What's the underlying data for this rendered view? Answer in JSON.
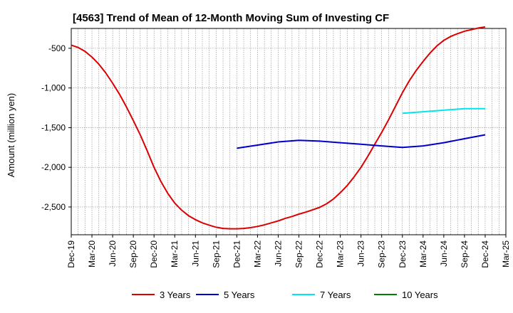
{
  "chart_data": {
    "type": "line",
    "title": "[4563]  Trend of Mean of 12-Month Moving Sum of Investing CF",
    "ylabel": "Amount (million yen)",
    "xlabel": "",
    "ylim": [
      -2850,
      -250
    ],
    "yticks": [
      -500,
      -1000,
      -1500,
      -2000,
      -2500
    ],
    "ytick_labels": [
      "-500",
      "-1,000",
      "-1,500",
      "-2,000",
      "-2,500"
    ],
    "x_range": [
      "2019-12",
      "2025-03"
    ],
    "xtick_labels": [
      "Dec-19",
      "Mar-20",
      "Jun-20",
      "Sep-20",
      "Dec-20",
      "Mar-21",
      "Jun-21",
      "Sep-21",
      "Dec-21",
      "Mar-22",
      "Jun-22",
      "Sep-22",
      "Dec-22",
      "Mar-23",
      "Jun-23",
      "Sep-23",
      "Dec-23",
      "Mar-24",
      "Jun-24",
      "Sep-24",
      "Dec-24",
      "Mar-25"
    ],
    "grid": true,
    "legend_position": "bottom",
    "series": [
      {
        "name": "3 Years",
        "color": "#dd0000",
        "x": [
          "2019-12",
          "2020-01",
          "2020-02",
          "2020-03",
          "2020-04",
          "2020-05",
          "2020-06",
          "2020-07",
          "2020-08",
          "2020-09",
          "2020-10",
          "2020-11",
          "2020-12",
          "2021-01",
          "2021-02",
          "2021-03",
          "2021-04",
          "2021-05",
          "2021-06",
          "2021-07",
          "2021-08",
          "2021-09",
          "2021-10",
          "2021-11",
          "2021-12",
          "2022-01",
          "2022-02",
          "2022-03",
          "2022-04",
          "2022-05",
          "2022-06",
          "2022-07",
          "2022-08",
          "2022-09",
          "2022-10",
          "2022-11",
          "2022-12",
          "2023-01",
          "2023-02",
          "2023-03",
          "2023-04",
          "2023-05",
          "2023-06",
          "2023-07",
          "2023-08",
          "2023-09",
          "2023-10",
          "2023-11",
          "2023-12",
          "2024-01",
          "2024-02",
          "2024-03",
          "2024-04",
          "2024-05",
          "2024-06",
          "2024-07",
          "2024-08",
          "2024-09",
          "2024-10",
          "2024-11",
          "2024-12"
        ],
        "values": [
          -460,
          -490,
          -540,
          -610,
          -700,
          -810,
          -940,
          -1080,
          -1240,
          -1410,
          -1590,
          -1790,
          -2000,
          -2180,
          -2330,
          -2450,
          -2540,
          -2610,
          -2660,
          -2700,
          -2730,
          -2755,
          -2770,
          -2775,
          -2775,
          -2770,
          -2760,
          -2745,
          -2725,
          -2700,
          -2675,
          -2645,
          -2620,
          -2590,
          -2565,
          -2535,
          -2505,
          -2460,
          -2400,
          -2320,
          -2230,
          -2120,
          -2000,
          -1860,
          -1710,
          -1560,
          -1400,
          -1230,
          -1060,
          -910,
          -780,
          -665,
          -560,
          -470,
          -400,
          -350,
          -315,
          -285,
          -265,
          -245,
          -230
        ]
      },
      {
        "name": "5 Years",
        "color": "#0000cc",
        "x": [
          "2021-12",
          "2022-03",
          "2022-06",
          "2022-09",
          "2022-12",
          "2023-03",
          "2023-06",
          "2023-09",
          "2023-12",
          "2024-03",
          "2024-06",
          "2024-09",
          "2024-12"
        ],
        "values": [
          -1760,
          -1720,
          -1680,
          -1660,
          -1670,
          -1690,
          -1710,
          -1730,
          -1750,
          -1730,
          -1690,
          -1640,
          -1590
        ]
      },
      {
        "name": "7 Years",
        "color": "#00e5ee",
        "x": [
          "2023-12",
          "2024-03",
          "2024-06",
          "2024-09",
          "2024-12"
        ],
        "values": [
          -1320,
          -1300,
          -1280,
          -1260,
          -1260
        ]
      },
      {
        "name": "10 Years",
        "color": "#008000",
        "x": [],
        "values": []
      }
    ]
  }
}
